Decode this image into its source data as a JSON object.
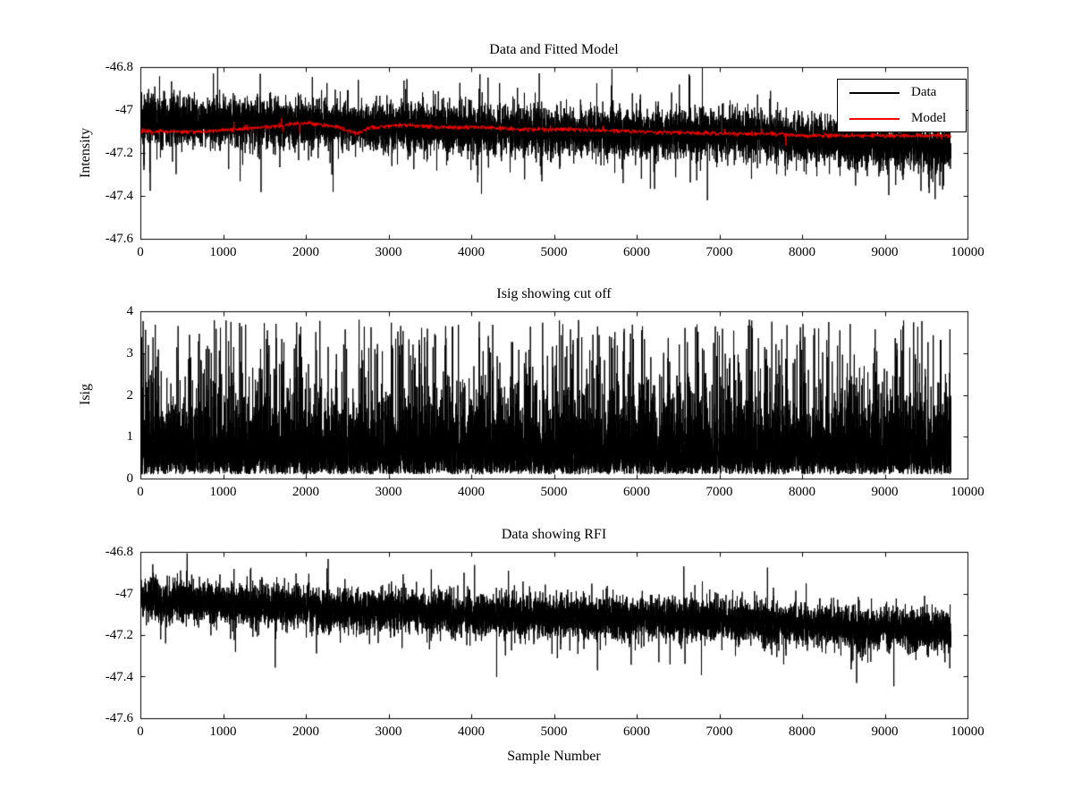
{
  "figure": {
    "background": "#ffffff",
    "axis_color": "#000000",
    "text_color": "#000000"
  },
  "chart_data": [
    {
      "type": "line",
      "title": "Data and Fitted Model",
      "ylabel": "Intensity",
      "xlabel": "",
      "xlim": [
        0,
        10000
      ],
      "ylim": [
        -47.6,
        -46.8
      ],
      "xticks": [
        0,
        1000,
        2000,
        3000,
        4000,
        5000,
        6000,
        7000,
        8000,
        9000,
        10000
      ],
      "xticklabels": [
        "0",
        "1000",
        "2000",
        "3000",
        "4000",
        "5000",
        "6000",
        "7000",
        "8000",
        "9000",
        "10000"
      ],
      "yticks": [
        -46.8,
        -47,
        -47.2,
        -47.4,
        -47.6
      ],
      "yticklabels": [
        "-46.8",
        "-47",
        "-47.2",
        "-47.4",
        "-47.6"
      ],
      "grid": false,
      "legend": {
        "position": "northeast",
        "entries": [
          {
            "label": "Data",
            "color": "#000000"
          },
          {
            "label": "Model",
            "color": "#ff0000"
          }
        ]
      },
      "series": [
        {
          "name": "Data",
          "color": "#000000",
          "style": "noise",
          "n": 9800,
          "x_end": 9800,
          "trend": [
            [
              0,
              -47.05
            ],
            [
              1000,
              -47.05
            ],
            [
              2000,
              -47.06
            ],
            [
              3000,
              -47.08
            ],
            [
              4000,
              -47.09
            ],
            [
              5000,
              -47.1
            ],
            [
              6000,
              -47.11
            ],
            [
              7000,
              -47.12
            ],
            [
              8000,
              -47.13
            ],
            [
              9000,
              -47.16
            ],
            [
              9800,
              -47.17
            ]
          ],
          "noise_std": 0.055,
          "spike_prob": 0.015,
          "spike_scale": 0.17,
          "seed": 11
        },
        {
          "name": "Model",
          "color": "#ff0000",
          "style": "noise",
          "n": 2600,
          "x_end": 9800,
          "trend": [
            [
              0,
              -47.1
            ],
            [
              800,
              -47.1
            ],
            [
              1500,
              -47.08
            ],
            [
              2000,
              -47.06
            ],
            [
              2400,
              -47.08
            ],
            [
              2600,
              -47.11
            ],
            [
              2800,
              -47.08
            ],
            [
              3200,
              -47.07
            ],
            [
              3600,
              -47.08
            ],
            [
              4000,
              -47.08
            ],
            [
              4600,
              -47.09
            ],
            [
              5200,
              -47.09
            ],
            [
              6000,
              -47.1
            ],
            [
              7000,
              -47.11
            ],
            [
              7600,
              -47.11
            ],
            [
              8000,
              -47.12
            ],
            [
              8600,
              -47.12
            ],
            [
              9200,
              -47.12
            ],
            [
              9800,
              -47.12
            ]
          ],
          "noise_std": 0.005,
          "spike_prob": 0.006,
          "spike_scale": 0.03,
          "seed": 22
        }
      ]
    },
    {
      "type": "line",
      "title": "Isig showing cut off",
      "ylabel": "Isig",
      "xlabel": "",
      "xlim": [
        0,
        10000
      ],
      "ylim": [
        0,
        4
      ],
      "xticks": [
        0,
        1000,
        2000,
        3000,
        4000,
        5000,
        6000,
        7000,
        8000,
        9000,
        10000
      ],
      "xticklabels": [
        "0",
        "1000",
        "2000",
        "3000",
        "4000",
        "5000",
        "6000",
        "7000",
        "8000",
        "9000",
        "10000"
      ],
      "yticks": [
        0,
        1,
        2,
        3,
        4
      ],
      "yticklabels": [
        "0",
        "1",
        "2",
        "3",
        "4"
      ],
      "grid": false,
      "series": [
        {
          "name": "Isig",
          "color": "#000000",
          "style": "noise-positive",
          "n": 9800,
          "x_end": 9800,
          "base": 0.1,
          "scale": 0.6,
          "mid_prob": 0.28,
          "mid_max": 1.3,
          "spike_prob": 0.045,
          "spike_min": 1.8,
          "spike_max": 3.8,
          "cap": 3.85,
          "seed": 33
        }
      ]
    },
    {
      "type": "line",
      "title": "Data showing RFI",
      "ylabel": "",
      "xlabel": "Sample Number",
      "xlim": [
        0,
        10000
      ],
      "ylim": [
        -47.6,
        -46.8
      ],
      "xticks": [
        0,
        1000,
        2000,
        3000,
        4000,
        5000,
        6000,
        7000,
        8000,
        9000,
        10000
      ],
      "xticklabels": [
        "0",
        "1000",
        "2000",
        "3000",
        "4000",
        "5000",
        "6000",
        "7000",
        "8000",
        "9000",
        "10000"
      ],
      "yticks": [
        -46.8,
        -47,
        -47.2,
        -47.4,
        -47.6
      ],
      "yticklabels": [
        "-46.8",
        "-47",
        "-47.2",
        "-47.4",
        "-47.6"
      ],
      "grid": false,
      "series": [
        {
          "name": "Data",
          "color": "#000000",
          "style": "noise",
          "n": 9800,
          "x_end": 9800,
          "trend": [
            [
              0,
              -47.03
            ],
            [
              1000,
              -47.05
            ],
            [
              2000,
              -47.07
            ],
            [
              3000,
              -47.08
            ],
            [
              4000,
              -47.1
            ],
            [
              5000,
              -47.11
            ],
            [
              6000,
              -47.12
            ],
            [
              7000,
              -47.13
            ],
            [
              8000,
              -47.15
            ],
            [
              9000,
              -47.17
            ],
            [
              9800,
              -47.18
            ]
          ],
          "noise_std": 0.05,
          "spike_prob": 0.01,
          "spike_scale": 0.16,
          "seed": 44
        }
      ]
    }
  ]
}
